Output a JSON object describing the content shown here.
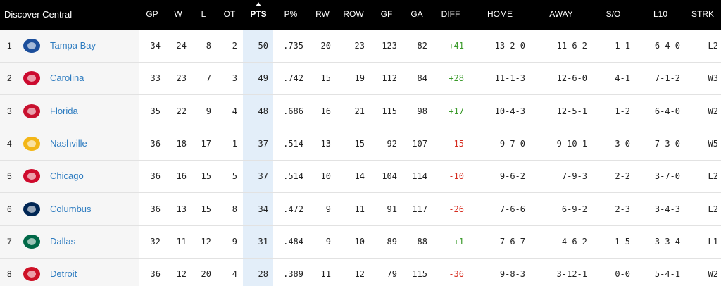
{
  "header": {
    "title": "Discover Central",
    "columns": [
      "GP",
      "W",
      "L",
      "OT",
      "PTS",
      "P%",
      "RW",
      "ROW",
      "GF",
      "GA",
      "DIFF",
      "HOME",
      "AWAY",
      "S/O",
      "L10",
      "STRK"
    ]
  },
  "rows": [
    {
      "rank": "1",
      "team": "Tampa Bay",
      "cells": [
        "34",
        "24",
        "8",
        "2",
        "50",
        ".735",
        "20",
        "23",
        "123",
        "82",
        "+41",
        "13-2-0",
        "11-6-2",
        "1-1",
        "6-4-0",
        "L2"
      ]
    },
    {
      "rank": "2",
      "team": "Carolina",
      "cells": [
        "33",
        "23",
        "7",
        "3",
        "49",
        ".742",
        "15",
        "19",
        "112",
        "84",
        "+28",
        "11-1-3",
        "12-6-0",
        "4-1",
        "7-1-2",
        "W3"
      ]
    },
    {
      "rank": "3",
      "team": "Florida",
      "cells": [
        "35",
        "22",
        "9",
        "4",
        "48",
        ".686",
        "16",
        "21",
        "115",
        "98",
        "+17",
        "10-4-3",
        "12-5-1",
        "1-2",
        "6-4-0",
        "W2"
      ]
    },
    {
      "rank": "4",
      "team": "Nashville",
      "cells": [
        "36",
        "18",
        "17",
        "1",
        "37",
        ".514",
        "13",
        "15",
        "92",
        "107",
        "-15",
        "9-7-0",
        "9-10-1",
        "3-0",
        "7-3-0",
        "W5"
      ]
    },
    {
      "rank": "5",
      "team": "Chicago",
      "cells": [
        "36",
        "16",
        "15",
        "5",
        "37",
        ".514",
        "10",
        "14",
        "104",
        "114",
        "-10",
        "9-6-2",
        "7-9-3",
        "2-2",
        "3-7-0",
        "L2"
      ]
    },
    {
      "rank": "6",
      "team": "Columbus",
      "cells": [
        "36",
        "13",
        "15",
        "8",
        "34",
        ".472",
        "9",
        "11",
        "91",
        "117",
        "-26",
        "7-6-6",
        "6-9-2",
        "2-3",
        "3-4-3",
        "L2"
      ]
    },
    {
      "rank": "7",
      "team": "Dallas",
      "cells": [
        "32",
        "11",
        "12",
        "9",
        "31",
        ".484",
        "9",
        "10",
        "89",
        "88",
        "+1",
        "7-6-7",
        "4-6-2",
        "1-5",
        "3-3-4",
        "L1"
      ]
    },
    {
      "rank": "8",
      "team": "Detroit",
      "cells": [
        "36",
        "12",
        "20",
        "4",
        "28",
        ".389",
        "11",
        "12",
        "79",
        "115",
        "-36",
        "9-8-3",
        "3-12-1",
        "0-0",
        "5-4-1",
        "W2"
      ]
    }
  ]
}
